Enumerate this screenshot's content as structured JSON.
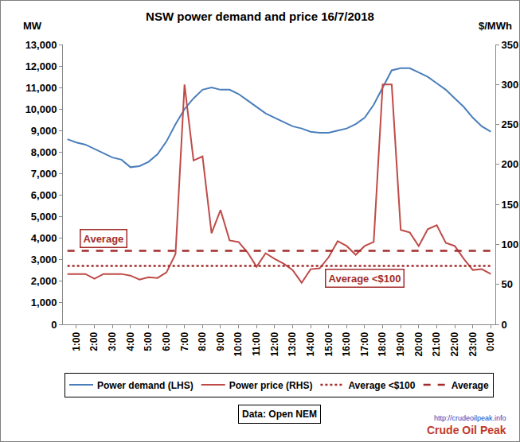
{
  "chart_data": {
    "type": "line",
    "title": "NSW power demand and price 16/7/2018",
    "y_unit": "MW",
    "y2_unit": "$/MWh",
    "annotations": [
      "Average",
      "Average <$100"
    ],
    "source": "Data: Open NEM",
    "logo_text": "Crude Oil Peak",
    "logo_url": "http://crudeoilpeak.info",
    "categories": [
      null,
      "1:00",
      null,
      "2:00",
      null,
      "3:00",
      null,
      "4:00",
      null,
      "5:00",
      null,
      "6:00",
      null,
      "7:00",
      null,
      "8:00",
      null,
      "9:00",
      null,
      "10:00",
      null,
      "11:00",
      null,
      "12:00",
      null,
      "13:00",
      null,
      "14:00",
      null,
      "15:00",
      null,
      "16:00",
      null,
      "17:00",
      null,
      "18:00",
      null,
      "19:00",
      null,
      "20:00",
      null,
      "21:00",
      null,
      "22:00",
      null,
      "23:00",
      null,
      "0:00"
    ],
    "series": [
      {
        "name": "Power demand (LHS)",
        "color": "#4a7ebb",
        "line_style": "solid",
        "values": [
          8600,
          8450,
          8350,
          8150,
          7950,
          7750,
          7650,
          7300,
          7350,
          7550,
          7900,
          8500,
          9300,
          10000,
          10500,
          10900,
          11000,
          10900,
          10900,
          10700,
          10400,
          10100,
          9800,
          9600,
          9400,
          9200,
          9100,
          8950,
          8900,
          8900,
          9000,
          9100,
          9300,
          9600,
          10200,
          11000,
          11800,
          11900,
          11900,
          11700,
          11500,
          11200,
          10900,
          10500,
          10100,
          9600,
          9200,
          8950
        ]
      },
      {
        "name": "Power price (RHS)",
        "color": "#be4b48",
        "axis": "y2",
        "line_style": "solid",
        "values": [
          63,
          63,
          63,
          57,
          63,
          63,
          63,
          61,
          56,
          59,
          58,
          65,
          88,
          300,
          205,
          210,
          114,
          143,
          105,
          103,
          90,
          72,
          89,
          82,
          76,
          68,
          52,
          69,
          70,
          84,
          104,
          98,
          87,
          98,
          103,
          300,
          300,
          118,
          115,
          98,
          119,
          124,
          102,
          98,
          82,
          68,
          69,
          63
        ]
      },
      {
        "name": "Average <$100",
        "color": "#a32b2b",
        "axis": "y2",
        "line_style": "dotted",
        "values": [
          73,
          73,
          73,
          73,
          73,
          73,
          73,
          73,
          73,
          73,
          73,
          73,
          73,
          73,
          73,
          73,
          73,
          73,
          73,
          73,
          73,
          73,
          73,
          73,
          73,
          73,
          73,
          73,
          73,
          73,
          73,
          73,
          73,
          73,
          73,
          73,
          73,
          73,
          73,
          73,
          73,
          73,
          73,
          73,
          73,
          73,
          73,
          73
        ]
      },
      {
        "name": "Average",
        "color": "#a32b2b",
        "axis": "y2",
        "line_style": "dashed",
        "values": [
          92,
          92,
          92,
          92,
          92,
          92,
          92,
          92,
          92,
          92,
          92,
          92,
          92,
          92,
          92,
          92,
          92,
          92,
          92,
          92,
          92,
          92,
          92,
          92,
          92,
          92,
          92,
          92,
          92,
          92,
          92,
          92,
          92,
          92,
          92,
          92,
          92,
          92,
          92,
          92,
          92,
          92,
          92,
          92,
          92,
          92,
          92,
          92
        ]
      }
    ],
    "ylim": [
      0,
      13000
    ],
    "yticks": [
      0,
      {
        "value": 1000,
        "label": "1,000"
      },
      {
        "value": 2000,
        "label": "2,000"
      },
      {
        "value": 3000,
        "label": "3,000"
      },
      {
        "value": 4000,
        "label": "4,000"
      },
      {
        "value": 5000,
        "label": "5,000"
      },
      {
        "value": 6000,
        "label": "6,000"
      },
      {
        "value": 7000,
        "label": "7,000"
      },
      {
        "value": 8000,
        "label": "8,000"
      },
      {
        "value": 9000,
        "label": "9,000"
      },
      {
        "value": 10000,
        "label": "10,000"
      },
      {
        "value": 11000,
        "label": "11,000"
      },
      {
        "value": 12000,
        "label": "12,000"
      },
      {
        "value": 13000,
        "label": "13,000"
      }
    ],
    "y2lim": [
      0,
      350
    ],
    "y2ticks": [
      0,
      50,
      100,
      150,
      200,
      250,
      300,
      350
    ],
    "grid": false,
    "legend": "bottom"
  }
}
